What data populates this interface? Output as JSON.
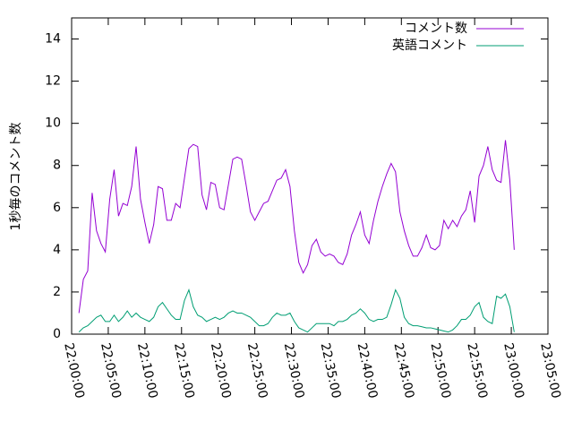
{
  "chart_data": {
    "type": "line",
    "ylabel": "1秒毎のコメント数",
    "x": [
      "22:01:00",
      "22:01:36",
      "22:02:12",
      "22:02:48",
      "22:03:24",
      "22:04:00",
      "22:04:36",
      "22:05:12",
      "22:05:48",
      "22:06:24",
      "22:07:00",
      "22:07:36",
      "22:08:12",
      "22:08:48",
      "22:09:24",
      "22:10:00",
      "22:10:36",
      "22:11:12",
      "22:11:48",
      "22:12:24",
      "22:13:00",
      "22:13:36",
      "22:14:12",
      "22:14:48",
      "22:15:24",
      "22:16:00",
      "22:16:36",
      "22:17:12",
      "22:17:48",
      "22:18:24",
      "22:19:00",
      "22:19:36",
      "22:20:12",
      "22:20:48",
      "22:21:24",
      "22:22:00",
      "22:22:36",
      "22:23:12",
      "22:23:48",
      "22:24:24",
      "22:25:00",
      "22:25:36",
      "22:26:12",
      "22:26:48",
      "22:27:24",
      "22:28:00",
      "22:28:36",
      "22:29:12",
      "22:29:48",
      "22:30:24",
      "22:31:00",
      "22:31:36",
      "22:32:12",
      "22:32:48",
      "22:33:24",
      "22:34:00",
      "22:34:36",
      "22:35:12",
      "22:35:48",
      "22:36:24",
      "22:37:00",
      "22:37:36",
      "22:38:12",
      "22:38:48",
      "22:39:24",
      "22:40:00",
      "22:40:36",
      "22:41:12",
      "22:41:48",
      "22:42:24",
      "22:43:00",
      "22:43:36",
      "22:44:12",
      "22:44:48",
      "22:45:24",
      "22:46:00",
      "22:46:36",
      "22:47:12",
      "22:47:48",
      "22:48:24",
      "22:49:00",
      "22:49:36",
      "22:50:12",
      "22:50:48",
      "22:51:24",
      "22:52:00",
      "22:52:36",
      "22:53:12",
      "22:53:48",
      "22:54:24",
      "22:55:00",
      "22:55:36",
      "22:56:12",
      "22:56:48",
      "22:57:24",
      "22:58:00",
      "22:58:36",
      "22:59:12",
      "22:59:48",
      "23:00:24"
    ],
    "series": [
      {
        "name": "コメント数",
        "color": "#9400d3",
        "values": [
          1.0,
          2.6,
          3.0,
          6.7,
          4.9,
          4.3,
          3.9,
          6.4,
          7.8,
          5.6,
          6.2,
          6.1,
          7.0,
          8.9,
          6.4,
          5.3,
          4.3,
          5.2,
          7.0,
          6.9,
          5.4,
          5.4,
          6.2,
          6.0,
          7.4,
          8.8,
          9.0,
          8.9,
          6.6,
          5.9,
          7.2,
          7.1,
          6.0,
          5.9,
          7.1,
          8.3,
          8.4,
          8.3,
          7.1,
          5.8,
          5.4,
          5.8,
          6.2,
          6.3,
          6.8,
          7.3,
          7.4,
          7.8,
          7.0,
          4.9,
          3.4,
          2.9,
          3.3,
          4.2,
          4.5,
          3.9,
          3.7,
          3.8,
          3.7,
          3.4,
          3.3,
          3.8,
          4.7,
          5.2,
          5.8,
          4.7,
          4.3,
          5.4,
          6.3,
          7.0,
          7.6,
          8.1,
          7.7,
          5.8,
          4.9,
          4.2,
          3.7,
          3.7,
          4.1,
          4.7,
          4.1,
          4.0,
          4.2,
          5.4,
          5.0,
          5.4,
          5.1,
          5.6,
          5.9,
          6.8,
          5.3,
          7.5,
          8.0,
          8.9,
          7.8,
          7.3,
          7.2,
          9.2,
          7.3,
          4.0
        ]
      },
      {
        "name": "英語コメント",
        "color": "#009e73",
        "values": [
          0.1,
          0.3,
          0.4,
          0.6,
          0.8,
          0.9,
          0.6,
          0.6,
          0.9,
          0.6,
          0.8,
          1.1,
          0.8,
          1.0,
          0.8,
          0.7,
          0.6,
          0.8,
          1.3,
          1.5,
          1.2,
          0.9,
          0.7,
          0.7,
          1.6,
          2.1,
          1.3,
          0.9,
          0.8,
          0.6,
          0.7,
          0.8,
          0.7,
          0.8,
          1.0,
          1.1,
          1.0,
          1.0,
          0.9,
          0.8,
          0.6,
          0.4,
          0.4,
          0.5,
          0.8,
          1.0,
          0.9,
          0.9,
          1.0,
          0.6,
          0.3,
          0.2,
          0.1,
          0.3,
          0.5,
          0.5,
          0.5,
          0.5,
          0.4,
          0.6,
          0.6,
          0.7,
          0.9,
          1.0,
          1.2,
          1.0,
          0.7,
          0.6,
          0.7,
          0.7,
          0.8,
          1.4,
          2.1,
          1.7,
          0.8,
          0.5,
          0.4,
          0.4,
          0.35,
          0.3,
          0.3,
          0.25,
          0.2,
          0.15,
          0.1,
          0.2,
          0.4,
          0.7,
          0.7,
          0.9,
          1.3,
          1.5,
          0.8,
          0.6,
          0.5,
          1.8,
          1.7,
          1.9,
          1.3,
          0.1
        ]
      }
    ],
    "xlim": [
      "22:00:00",
      "23:05:00"
    ],
    "xticks": [
      "22:00:00",
      "22:05:00",
      "22:10:00",
      "22:15:00",
      "22:20:00",
      "22:25:00",
      "22:30:00",
      "22:35:00",
      "22:40:00",
      "22:45:00",
      "22:50:00",
      "22:55:00",
      "23:00:00",
      "23:05:00"
    ],
    "ylim": [
      0,
      15
    ],
    "yticks": [
      0,
      2,
      4,
      6,
      8,
      10,
      12,
      14
    ],
    "legend": "upper right"
  }
}
